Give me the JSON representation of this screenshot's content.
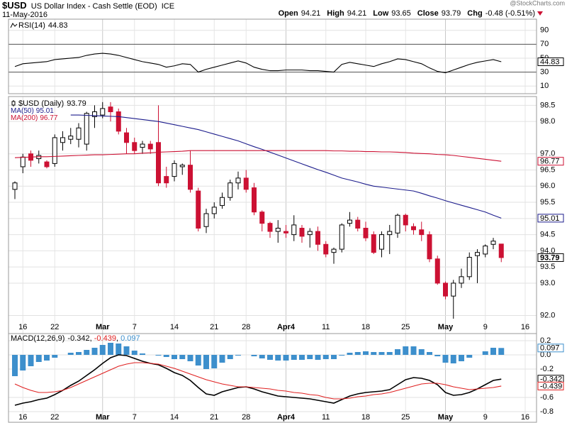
{
  "header": {
    "symbol": "$USD",
    "name": "US Dollar Index - Cash Settle (EOD)",
    "exchange": "ICE",
    "date": "11-May-2016",
    "watermark": "@StockCharts.com",
    "quote": [
      {
        "label": "Open",
        "value": "94.21"
      },
      {
        "label": "High",
        "value": "94.21"
      },
      {
        "label": "Low",
        "value": "93.65"
      },
      {
        "label": "Close",
        "value": "93.79"
      },
      {
        "label": "Chg",
        "value": "-0.48 (-0.51%)"
      }
    ]
  },
  "chart_data": [
    {
      "type": "line",
      "levels": [
        30,
        70
      ],
      "ylim": [
        0,
        105
      ],
      "yticks": [
        90,
        70,
        50,
        30,
        10
      ],
      "series": [
        {
          "name": "RSI(14)",
          "color": "#000000",
          "values": [
            38,
            42,
            43,
            44,
            45,
            48,
            49,
            50,
            51,
            54,
            56,
            57,
            56,
            54,
            51,
            48,
            45,
            43,
            41,
            37,
            39,
            42,
            41,
            30,
            34,
            37,
            40,
            43,
            46,
            43,
            37,
            34,
            32,
            32,
            33,
            33,
            33,
            32,
            32,
            31,
            30,
            41,
            44,
            42,
            40,
            38,
            42,
            45,
            49,
            48,
            45,
            42,
            36,
            31,
            29,
            33,
            37,
            41,
            44,
            46,
            48,
            44.83,
            null,
            null,
            null
          ]
        }
      ]
    },
    {
      "type": "candlestick",
      "title": "$USD (Daily)",
      "up_color": "#ffffff",
      "down_color": "#cc1133",
      "grid": true,
      "categories": [
        null,
        "16",
        null,
        null,
        null,
        "22",
        null,
        null,
        null,
        null,
        null,
        "Mar",
        null,
        null,
        null,
        "7",
        null,
        null,
        null,
        null,
        "14",
        null,
        null,
        null,
        null,
        "21",
        null,
        null,
        null,
        "28",
        null,
        null,
        null,
        null,
        "Apr4",
        null,
        null,
        null,
        null,
        "11",
        null,
        null,
        null,
        null,
        "18",
        null,
        null,
        null,
        null,
        "25",
        null,
        null,
        null,
        null,
        "May",
        null,
        null,
        null,
        null,
        "9",
        null,
        null,
        null,
        null,
        "16"
      ],
      "open": [
        95.9,
        96.6,
        97.0,
        96.85,
        96.75,
        96.7,
        97.35,
        97.45,
        97.45,
        97.3,
        98.15,
        98.2,
        98.45,
        98.3,
        97.65,
        97.35,
        97.2,
        97.3,
        97.35,
        96.3,
        96.3,
        96.6,
        96.65,
        95.85,
        94.75,
        95.15,
        95.4,
        95.65,
        96.1,
        96.25,
        95.95,
        95.2,
        94.85,
        94.6,
        94.6,
        94.5,
        94.7,
        94.5,
        94.6,
        94.2,
        93.95,
        94.05,
        94.85,
        94.95,
        94.7,
        94.5,
        94.05,
        94.5,
        94.55,
        95.1,
        94.75,
        94.65,
        94.5,
        93.75,
        93.0,
        92.6,
        93.0,
        93.2,
        93.85,
        93.9,
        94.2,
        94.21,
        null,
        null,
        null
      ],
      "high": [
        96.15,
        97.0,
        97.1,
        97.1,
        96.8,
        97.6,
        97.7,
        97.8,
        97.95,
        98.3,
        98.5,
        98.6,
        98.6,
        98.4,
        97.8,
        97.5,
        97.4,
        97.4,
        98.5,
        96.6,
        96.8,
        96.7,
        97.1,
        95.95,
        95.3,
        95.5,
        95.8,
        96.2,
        96.45,
        96.5,
        96.1,
        95.25,
        94.9,
        94.95,
        94.8,
        95.1,
        94.8,
        94.7,
        94.75,
        94.3,
        94.1,
        94.85,
        95.2,
        95.05,
        94.9,
        94.6,
        94.6,
        94.8,
        95.15,
        95.15,
        94.85,
        94.9,
        94.6,
        93.85,
        93.05,
        93.1,
        93.45,
        93.95,
        94.05,
        94.2,
        94.4,
        94.21,
        null,
        null,
        null
      ],
      "low": [
        95.6,
        96.4,
        96.6,
        96.7,
        96.55,
        96.6,
        97.1,
        97.3,
        97.2,
        97.1,
        97.8,
        98.1,
        98.0,
        97.6,
        97.0,
        97.0,
        97.0,
        97.0,
        96.0,
        95.95,
        96.15,
        96.35,
        95.8,
        94.6,
        94.55,
        95.0,
        95.3,
        95.55,
        95.9,
        95.8,
        95.1,
        94.6,
        94.4,
        94.25,
        94.4,
        94.3,
        94.25,
        94.1,
        94.0,
        93.8,
        93.6,
        93.95,
        94.75,
        94.6,
        94.3,
        93.9,
        93.8,
        93.9,
        94.4,
        94.6,
        94.5,
        94.3,
        93.65,
        92.95,
        92.5,
        91.9,
        92.85,
        93.1,
        93.0,
        93.8,
        94.05,
        93.65,
        null,
        null,
        null
      ],
      "close": [
        96.1,
        96.9,
        96.8,
        96.95,
        96.6,
        97.5,
        97.5,
        97.55,
        97.8,
        98.25,
        98.3,
        98.4,
        98.3,
        97.7,
        97.35,
        97.1,
        97.3,
        97.15,
        96.1,
        96.1,
        96.7,
        96.65,
        95.9,
        94.7,
        95.15,
        95.35,
        95.65,
        96.1,
        96.25,
        95.9,
        95.2,
        94.85,
        94.6,
        94.7,
        94.55,
        94.8,
        94.45,
        94.6,
        94.2,
        93.9,
        94.05,
        94.8,
        94.95,
        94.7,
        94.4,
        93.95,
        94.5,
        94.6,
        95.1,
        94.8,
        94.65,
        94.5,
        93.75,
        93.0,
        92.6,
        93.0,
        93.2,
        93.8,
        93.95,
        94.15,
        94.3,
        93.79,
        null,
        null,
        null
      ],
      "series": [
        {
          "name": "MA(50)",
          "color": "#1c1c8c",
          "values": [
            null,
            null,
            null,
            null,
            null,
            null,
            null,
            98.2,
            98.2,
            98.19,
            98.18,
            98.17,
            98.16,
            98.15,
            98.12,
            98.09,
            98.06,
            98.03,
            98.0,
            97.95,
            97.9,
            97.85,
            97.8,
            97.75,
            97.68,
            97.61,
            97.54,
            97.47,
            97.4,
            97.31,
            97.22,
            97.14,
            97.05,
            96.96,
            96.87,
            96.78,
            96.69,
            96.6,
            96.51,
            96.43,
            96.34,
            96.25,
            96.19,
            96.13,
            96.06,
            96.0,
            95.97,
            95.94,
            95.91,
            95.88,
            95.85,
            95.78,
            95.7,
            95.63,
            95.55,
            95.48,
            95.41,
            95.34,
            95.27,
            95.2,
            95.1,
            95.01,
            null,
            null,
            null
          ]
        },
        {
          "name": "MA(200)",
          "color": "#cc1133",
          "values": [
            96.88,
            96.89,
            96.9,
            96.91,
            96.91,
            96.92,
            96.93,
            96.94,
            96.95,
            96.96,
            96.97,
            96.97,
            96.98,
            96.99,
            97.0,
            97.0,
            97.02,
            97.03,
            97.05,
            97.06,
            97.07,
            97.08,
            97.1,
            97.1,
            97.1,
            97.1,
            97.1,
            97.1,
            97.1,
            97.1,
            97.1,
            97.1,
            97.1,
            97.1,
            97.1,
            97.1,
            97.1,
            97.1,
            97.1,
            97.1,
            97.09,
            97.09,
            97.08,
            97.08,
            97.07,
            97.07,
            97.06,
            97.06,
            97.05,
            97.04,
            97.02,
            97.01,
            97.0,
            96.98,
            96.97,
            96.95,
            96.92,
            96.89,
            96.86,
            96.83,
            96.8,
            96.77,
            null,
            null,
            null
          ]
        }
      ],
      "ylim": [
        91.55,
        98.75
      ],
      "yticks": [
        98.5,
        {
          "value": 98,
          "label": "98.0"
        },
        {
          "value": 97,
          "label": "97.0"
        },
        96.5,
        {
          "value": 96,
          "label": "96.0"
        },
        95.5,
        {
          "value": 95,
          "label": "95.0"
        },
        94.5,
        {
          "value": 94,
          "label": "94.0"
        },
        93.5,
        {
          "value": 93,
          "label": "93.0"
        },
        {
          "value": 92,
          "label": "92.0"
        }
      ]
    },
    {
      "type": "line",
      "separator": ", ",
      "ylim": [
        -0.82,
        0.29
      ],
      "yticks": [
        0.2,
        {
          "value": 0,
          "label": "0.0"
        },
        -0.2,
        -0.6,
        -0.8
      ],
      "series": [
        {
          "name": "MACD(12,26,9)",
          "color": "#000000",
          "values": [
            -0.71,
            -0.68,
            -0.66,
            -0.63,
            -0.61,
            -0.56,
            -0.5,
            -0.43,
            -0.37,
            -0.29,
            -0.21,
            -0.12,
            -0.04,
            0.0,
            -0.01,
            -0.05,
            -0.09,
            -0.12,
            -0.14,
            -0.19,
            -0.25,
            -0.29,
            -0.36,
            -0.46,
            -0.55,
            -0.57,
            -0.52,
            -0.49,
            -0.46,
            -0.45,
            -0.48,
            -0.52,
            -0.55,
            -0.58,
            -0.59,
            -0.6,
            -0.61,
            -0.62,
            -0.64,
            -0.66,
            -0.68,
            -0.63,
            -0.58,
            -0.55,
            -0.53,
            -0.52,
            -0.51,
            -0.49,
            -0.42,
            -0.35,
            -0.32,
            -0.33,
            -0.36,
            -0.42,
            -0.53,
            -0.57,
            -0.56,
            -0.53,
            -0.48,
            -0.42,
            -0.36,
            -0.342,
            null,
            null,
            null
          ]
        },
        {
          "color": "#e02020",
          "values": [
            -0.41,
            -0.46,
            -0.5,
            -0.53,
            -0.53,
            -0.52,
            -0.5,
            -0.46,
            -0.41,
            -0.36,
            -0.31,
            -0.26,
            -0.21,
            -0.16,
            -0.13,
            -0.11,
            -0.11,
            -0.12,
            -0.13,
            -0.16,
            -0.19,
            -0.23,
            -0.27,
            -0.31,
            -0.35,
            -0.38,
            -0.41,
            -0.43,
            -0.45,
            -0.45,
            -0.46,
            -0.47,
            -0.48,
            -0.5,
            -0.51,
            -0.53,
            -0.54,
            -0.56,
            -0.57,
            -0.6,
            -0.62,
            -0.62,
            -0.61,
            -0.59,
            -0.58,
            -0.56,
            -0.55,
            -0.53,
            -0.5,
            -0.47,
            -0.44,
            -0.41,
            -0.4,
            -0.4,
            -0.42,
            -0.45,
            -0.47,
            -0.49,
            -0.48,
            -0.47,
            -0.46,
            -0.439,
            null,
            null,
            null
          ]
        },
        {
          "color": "#3d8fcc",
          "style": "bar",
          "values": [
            -0.3,
            -0.22,
            -0.16,
            -0.1,
            -0.08,
            -0.04,
            0.0,
            0.03,
            0.04,
            0.07,
            0.1,
            0.14,
            0.17,
            0.16,
            0.12,
            0.06,
            0.02,
            0.0,
            -0.01,
            -0.03,
            -0.06,
            -0.06,
            -0.09,
            -0.15,
            -0.2,
            -0.19,
            -0.11,
            -0.06,
            -0.01,
            0.0,
            -0.02,
            -0.05,
            -0.07,
            -0.08,
            -0.08,
            -0.07,
            -0.07,
            -0.06,
            -0.07,
            -0.06,
            -0.06,
            -0.01,
            0.03,
            0.04,
            0.05,
            0.04,
            0.04,
            0.04,
            0.08,
            0.12,
            0.12,
            0.08,
            0.04,
            -0.02,
            -0.11,
            -0.12,
            -0.09,
            -0.04,
            0.0,
            0.05,
            0.1,
            0.097,
            null,
            null,
            null
          ]
        }
      ]
    }
  ]
}
